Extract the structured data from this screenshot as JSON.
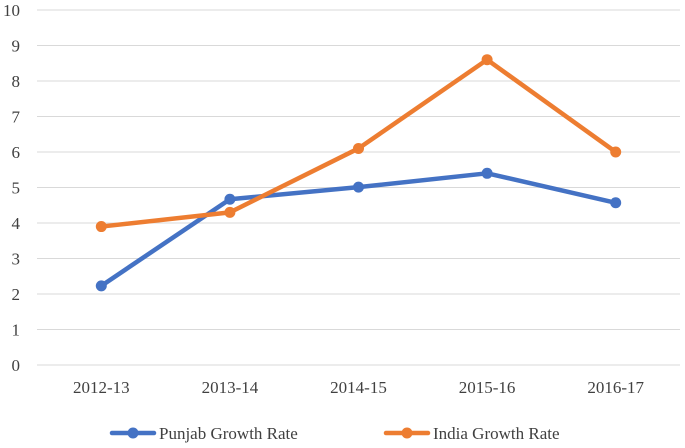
{
  "chart_data": {
    "type": "line",
    "categories": [
      "2012-13",
      "2013-14",
      "2014-15",
      "2015-16",
      "2016-17"
    ],
    "series": [
      {
        "name": "Punjab  Growth Rate",
        "values": [
          2.23,
          4.67,
          5.01,
          5.4,
          4.57
        ],
        "color": "#4472c4"
      },
      {
        "name": "India  Growth Rate",
        "values": [
          3.9,
          4.3,
          6.1,
          8.6,
          6.0
        ],
        "color": "#ed7d31"
      }
    ],
    "ylim": [
      0,
      10
    ],
    "yticks": [
      "0",
      "1",
      "2",
      "3",
      "4",
      "5",
      "6",
      "7",
      "8",
      "9",
      "10"
    ],
    "grid": true,
    "gridline_color": "#d9d9d9",
    "legend_position": "bottom"
  }
}
